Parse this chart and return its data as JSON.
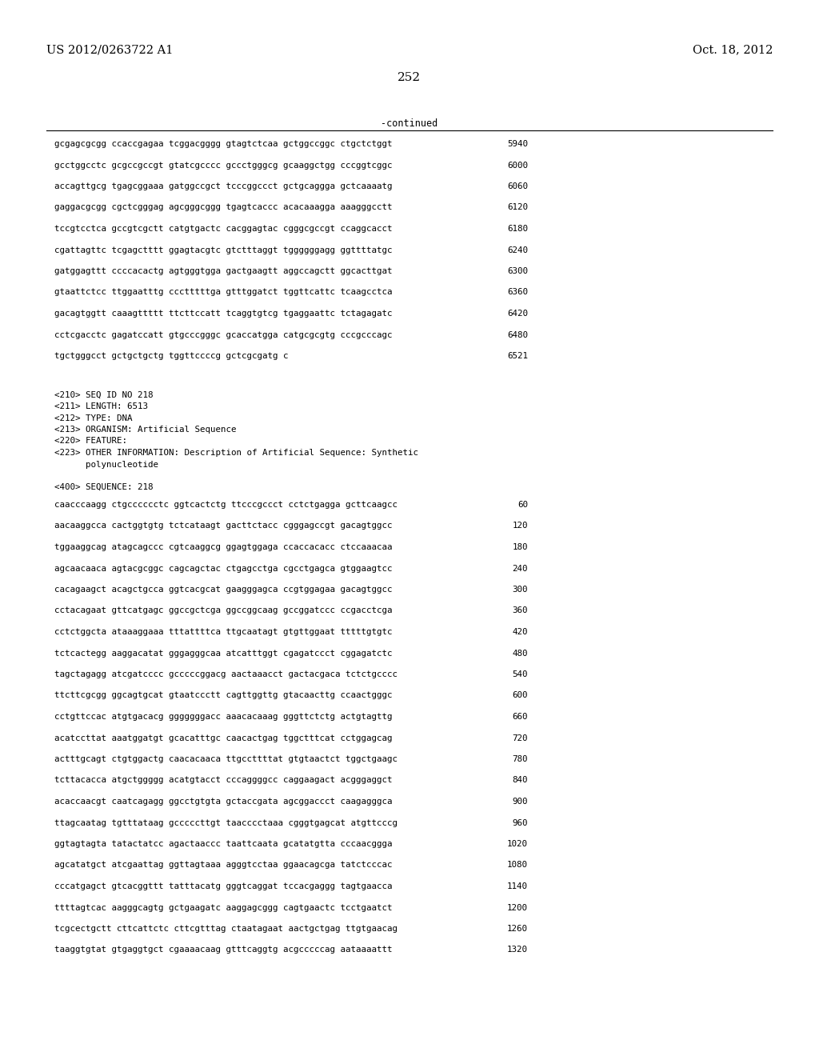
{
  "page_left": "US 2012/0263722 A1",
  "page_right": "Oct. 18, 2012",
  "page_number": "252",
  "continued_label": "-continued",
  "background_color": "#ffffff",
  "text_color": "#000000",
  "sequence_lines_top": [
    [
      "gcgagcgcgg ccaccgagaa tcggacgggg gtagtctcaa gctggccggc ctgctctggt",
      "5940"
    ],
    [
      "gcctggcctc gcgccgccgt gtatcgcccc gccctgggcg gcaaggctgg cccggtcggc",
      "6000"
    ],
    [
      "accagttgcg tgagcggaaa gatggccgct tcccggccct gctgcaggga gctcaaaatg",
      "6060"
    ],
    [
      "gaggacgcgg cgctcgggag agcgggcggg tgagtcaccc acacaaagga aaagggcctt",
      "6120"
    ],
    [
      "tccgtcctca gccgtcgctt catgtgactc cacggagtac cgggcgccgt ccaggcacct",
      "6180"
    ],
    [
      "cgattagttc tcgagctttt ggagtacgtc gtctttaggt tggggggagg ggttttatgc",
      "6240"
    ],
    [
      "gatggagttt ccccacactg agtgggtgga gactgaagtt aggccagctt ggcacttgat",
      "6300"
    ],
    [
      "gtaattctcc ttggaatttg ccctttttga gtttggatct tggttcattc tcaagcctca",
      "6360"
    ],
    [
      "gacagtggtt caaagttttt ttcttccatt tcaggtgtcg tgaggaattc tctagagatc",
      "6420"
    ],
    [
      "cctcgacctc gagatccatt gtgcccgggc gcaccatgga catgcgcgtg cccgcccagc",
      "6480"
    ],
    [
      "tgctgggcct gctgctgctg tggttccccg gctcgcgatg c",
      "6521"
    ]
  ],
  "metadata_lines": [
    "<210> SEQ ID NO 218",
    "<211> LENGTH: 6513",
    "<212> TYPE: DNA",
    "<213> ORGANISM: Artificial Sequence",
    "<220> FEATURE:",
    "<223> OTHER INFORMATION: Description of Artificial Sequence: Synthetic",
    "      polynucleotide"
  ],
  "sequence_label": "<400> SEQUENCE: 218",
  "sequence_lines_bottom": [
    [
      "caacccaagg ctgcccccctc ggtcactctg ttcccgccct cctctgagga gcttcaagcc",
      "60"
    ],
    [
      "aacaaggcca cactggtgtg tctcataagt gacttctacc cgggagccgt gacagtggcc",
      "120"
    ],
    [
      "tggaaggcag atagcagccc cgtcaaggcg ggagtggaga ccaccacacc ctccaaacaa",
      "180"
    ],
    [
      "agcaacaaca agtacgcggc cagcagctac ctgagcctga cgcctgagca gtggaagtcc",
      "240"
    ],
    [
      "cacagaagct acagctgcca ggtcacgcat gaagggagca ccgtggagaa gacagtggcc",
      "300"
    ],
    [
      "cctacagaat gttcatgagc ggccgctcga ggccggcaag gccggatccc ccgacctcga",
      "360"
    ],
    [
      "cctctggcta ataaaggaaa tttattttca ttgcaatagt gtgttggaat tttttgtgtc",
      "420"
    ],
    [
      "tctcactegg aaggacatat gggagggcaa atcatttggt cgagatccct cggagatctc",
      "480"
    ],
    [
      "tagctagagg atcgatcccc gcccccggacg aactaaacct gactacgaca tctctgcccc",
      "540"
    ],
    [
      "ttcttcgcgg ggcagtgcat gtaatccctt cagttggttg gtacaacttg ccaactgggc",
      "600"
    ],
    [
      "cctgttccac atgtgacacg gggggggacc aaacacaaag gggttctctg actgtagttg",
      "660"
    ],
    [
      "acatccttat aaatggatgt gcacatttgc caacactgag tggctttcat cctggagcag",
      "720"
    ],
    [
      "actttgcagt ctgtggactg caacacaaca ttgccttttat gtgtaactct tggctgaagc",
      "780"
    ],
    [
      "tcttacacca atgctggggg acatgtacct cccaggggcc caggaagact acgggaggct",
      "840"
    ],
    [
      "acaccaacgt caatcagagg ggcctgtgta gctaccgata agcggaccct caagagggca",
      "900"
    ],
    [
      "ttagcaatag tgtttataag gcccccttgt taacccctaaa cgggtgagcat atgttcccg",
      "960"
    ],
    [
      "ggtagtagta tatactatcc agactaaccc taattcaata gcatatgtta cccaacggga",
      "1020"
    ],
    [
      "agcatatgct atcgaattag ggttagtaaa agggtcctaa ggaacagcga tatctcccac",
      "1080"
    ],
    [
      "cccatgagct gtcacggttt tatttacatg gggtcaggat tccacgaggg tagtgaacca",
      "1140"
    ],
    [
      "ttttagtcac aagggcagtg gctgaagatc aaggagcggg cagtgaactc tcctgaatct",
      "1200"
    ],
    [
      "tcgcectgctt cttcattctc cttcgtttag ctaatagaat aactgctgag ttgtgaacag",
      "1260"
    ],
    [
      "taaggtgtat gtgaggtgct cgaaaacaag gtttcaggtg acgcccccag aataaaattt",
      "1320"
    ]
  ]
}
